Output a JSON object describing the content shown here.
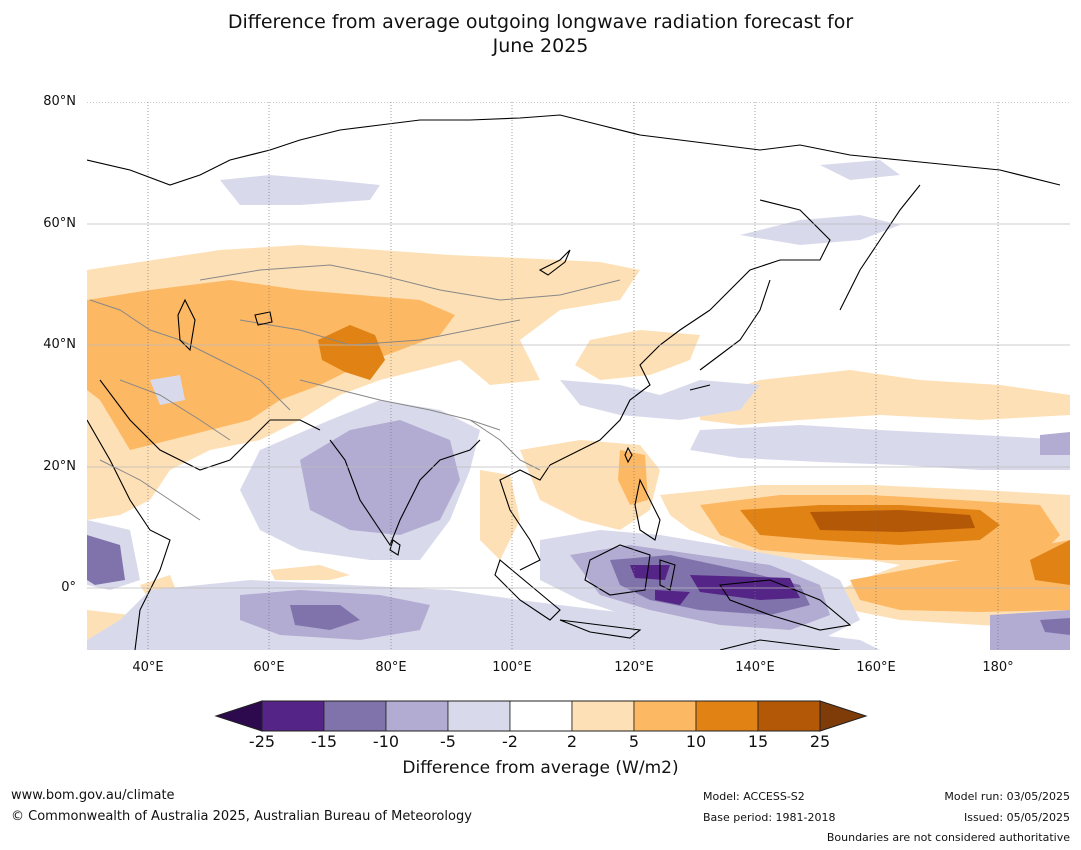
{
  "title": {
    "line1": "Difference from average outgoing longwave radiation forecast for",
    "line2": "June 2025"
  },
  "map": {
    "lat_labels": [
      "80°N",
      "60°N",
      "40°N",
      "20°N",
      "0°"
    ],
    "lon_labels": [
      "40°E",
      "60°E",
      "80°E",
      "100°E",
      "120°E",
      "140°E",
      "160°E",
      "180°"
    ],
    "colors": {
      "lt_-25": "#2d0a4e",
      "-25_-15": "#542487",
      "-15_-10": "#8073ac",
      "-10_-5": "#b2abd2",
      "-5_-2": "#d8daeb",
      "-2_2": "#ffffff",
      "2_5": "#fee0b6",
      "5_10": "#fdb863",
      "10_15": "#e08214",
      "15_25": "#b35806",
      "gt_25": "#7f3b08"
    }
  },
  "colorbar": {
    "ticks": [
      "-25",
      "-15",
      "-10",
      "-5",
      "-2",
      "2",
      "5",
      "10",
      "15",
      "25"
    ],
    "segment_colors": [
      "#542487",
      "#8073ac",
      "#b2abd2",
      "#d8daeb",
      "#ffffff",
      "#fee0b6",
      "#fdb863",
      "#e08214",
      "#b35806"
    ],
    "low_extend_color": "#2d0a4e",
    "high_extend_color": "#7f3b08",
    "label": "Difference from average (W/m2)"
  },
  "footer": {
    "url": "www.bom.gov.au/climate",
    "copyright": "© Commonwealth of Australia 2025, Australian Bureau of Meteorology",
    "model": "Model: ACCESS-S2",
    "base_period": "Base period: 1981-2018",
    "model_run": "Model run: 03/05/2025",
    "issued": "Issued: 05/05/2025",
    "disclaimer": "Boundaries are not considered authoritative"
  }
}
